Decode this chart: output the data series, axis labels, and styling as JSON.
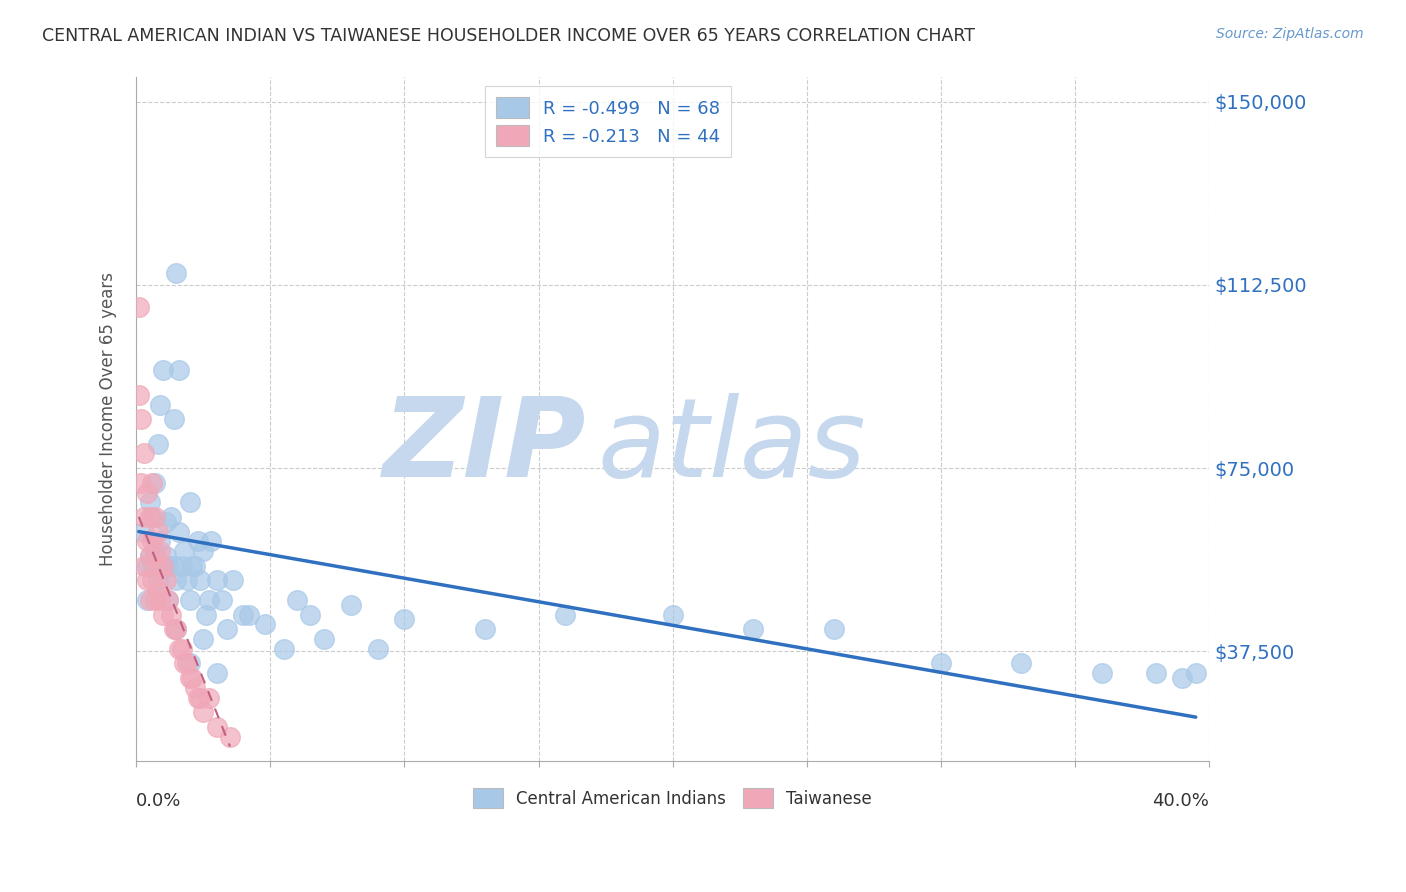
{
  "title": "CENTRAL AMERICAN INDIAN VS TAIWANESE HOUSEHOLDER INCOME OVER 65 YEARS CORRELATION CHART",
  "source": "Source: ZipAtlas.com",
  "ylabel": "Householder Income Over 65 years",
  "ytick_labels": [
    "$150,000",
    "$112,500",
    "$75,000",
    "$37,500"
  ],
  "ytick_values": [
    150000,
    112500,
    75000,
    37500
  ],
  "xlim": [
    0.0,
    0.4
  ],
  "ylim": [
    15000,
    155000
  ],
  "legend_label_blue": "Central American Indians",
  "legend_label_pink": "Taiwanese",
  "blue_color": "#a8c8e8",
  "blue_line_color": "#3070c0",
  "pink_color": "#f0a8b8",
  "pink_line_color": "#c06080",
  "watermark_zip": "ZIP",
  "watermark_atlas": "atlas",
  "watermark_color": "#c8dff0",
  "title_color": "#333333",
  "source_color": "#6699cc",
  "blue_scatter_x": [
    0.003,
    0.004,
    0.004,
    0.005,
    0.005,
    0.006,
    0.006,
    0.007,
    0.007,
    0.008,
    0.008,
    0.009,
    0.009,
    0.01,
    0.01,
    0.011,
    0.011,
    0.012,
    0.012,
    0.013,
    0.014,
    0.014,
    0.015,
    0.015,
    0.016,
    0.016,
    0.017,
    0.018,
    0.019,
    0.02,
    0.02,
    0.021,
    0.022,
    0.023,
    0.024,
    0.025,
    0.026,
    0.027,
    0.028,
    0.03,
    0.032,
    0.034,
    0.036,
    0.04,
    0.042,
    0.048,
    0.055,
    0.06,
    0.065,
    0.07,
    0.08,
    0.09,
    0.1,
    0.13,
    0.16,
    0.2,
    0.23,
    0.26,
    0.3,
    0.33,
    0.36,
    0.38,
    0.39,
    0.395,
    0.015,
    0.02,
    0.025,
    0.03
  ],
  "blue_scatter_y": [
    62000,
    55000,
    48000,
    68000,
    57000,
    55000,
    65000,
    72000,
    58000,
    80000,
    52000,
    88000,
    60000,
    95000,
    55000,
    64000,
    57000,
    55000,
    48000,
    65000,
    85000,
    55000,
    115000,
    52000,
    95000,
    62000,
    55000,
    58000,
    52000,
    68000,
    48000,
    55000,
    55000,
    60000,
    52000,
    58000,
    45000,
    48000,
    60000,
    52000,
    48000,
    42000,
    52000,
    45000,
    45000,
    43000,
    38000,
    48000,
    45000,
    40000,
    47000,
    38000,
    44000,
    42000,
    45000,
    45000,
    42000,
    42000,
    35000,
    35000,
    33000,
    33000,
    32000,
    33000,
    42000,
    35000,
    40000,
    33000
  ],
  "pink_scatter_x": [
    0.001,
    0.001,
    0.002,
    0.002,
    0.003,
    0.003,
    0.003,
    0.004,
    0.004,
    0.004,
    0.005,
    0.005,
    0.005,
    0.006,
    0.006,
    0.006,
    0.007,
    0.007,
    0.007,
    0.008,
    0.008,
    0.008,
    0.009,
    0.009,
    0.01,
    0.01,
    0.011,
    0.012,
    0.013,
    0.014,
    0.015,
    0.016,
    0.017,
    0.018,
    0.019,
    0.02,
    0.021,
    0.022,
    0.023,
    0.024,
    0.025,
    0.027,
    0.03,
    0.035
  ],
  "pink_scatter_y": [
    108000,
    90000,
    85000,
    72000,
    78000,
    65000,
    55000,
    70000,
    60000,
    52000,
    65000,
    57000,
    48000,
    72000,
    60000,
    52000,
    65000,
    57000,
    48000,
    62000,
    55000,
    50000,
    58000,
    48000,
    55000,
    45000,
    52000,
    48000,
    45000,
    42000,
    42000,
    38000,
    38000,
    35000,
    35000,
    32000,
    32000,
    30000,
    28000,
    28000,
    25000,
    28000,
    22000,
    20000
  ],
  "blue_regline_x": [
    0.001,
    0.395
  ],
  "blue_regline_y": [
    62000,
    24000
  ],
  "pink_regline_x": [
    0.001,
    0.035
  ],
  "pink_regline_y": [
    65000,
    18000
  ]
}
